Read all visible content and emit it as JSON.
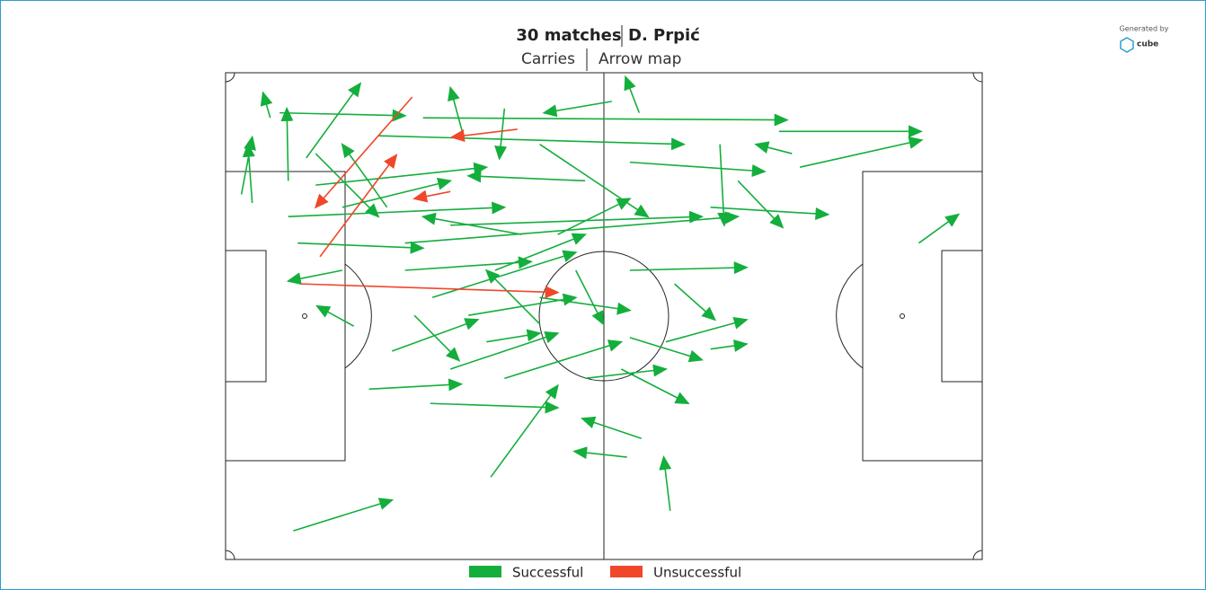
{
  "chart_data": {
    "type": "arrow",
    "title": "30 matches",
    "player": "D. Prpić",
    "subtitle": "Carries",
    "view": "Arrow map",
    "credit": "Generated by",
    "brand": "cube",
    "xlim": [
      0,
      105
    ],
    "ylim": [
      0,
      68
    ],
    "legend": "bottom",
    "series": [
      {
        "name": "Successful",
        "color": "#14ae3c",
        "start_x": [
          76.8,
          79.7,
          96.2,
          9.4,
          36.8,
          61.7,
          55.7,
          57.7,
          28.4,
          19.9,
          17.8,
          57.4,
          53.6,
          33.0,
          11.2,
          6.2,
          2.2,
          3.7,
          8.7,
          27.4,
          7.5,
          38.7,
          68.6,
          71.1,
          67.3,
          56.1,
          62.3,
          56.1,
          54.9,
          67.3,
          61.1,
          49.9,
          43.6,
          26.2,
          23.1,
          8.7,
          10.0,
          16.2,
          12.5,
          21.2,
          31.2,
          24.9,
          37.4,
          28.7,
          36.2,
          43.6,
          49.9,
          56.1,
          46.1,
          16.2,
          22.4,
          33.7,
          31.2,
          48.6,
          38.7,
          43.6,
          41.1,
          24.9,
          12.5,
          78.6
        ],
        "start_y": [
          8.2,
          13.2,
          23.8,
          64.0,
          56.5,
          61.2,
          53.7,
          51.1,
          46.2,
          44.2,
          35.4,
          5.6,
          4.0,
          8.8,
          11.9,
          6.3,
          17.0,
          18.2,
          15.1,
          6.3,
          5.6,
          5.0,
          10.0,
          15.1,
          18.8,
          27.6,
          29.5,
          37.0,
          41.4,
          38.6,
          37.6,
          42.7,
          31.4,
          33.9,
          38.9,
          20.1,
          23.8,
          27.6,
          15.7,
          8.8,
          21.3,
          23.8,
          27.6,
          31.4,
          37.6,
          35.1,
          15.1,
          12.5,
          22.6,
          18.8,
          18.8,
          33.9,
          41.4,
          27.6,
          42.7,
          10.0,
          22.6,
          27.6,
          11.3,
          11.3
        ],
        "end_x": [
          96.5,
          96.6,
          101.7,
          23.1,
          46.1,
          60.8,
          48.4,
          49.5,
          46.1,
          32.7,
          12.7,
          55.5,
          44.2,
          31.2,
          18.7,
          5.2,
          3.7,
          3.1,
          8.5,
          77.9,
          24.9,
          38.0,
          69.2,
          77.3,
          83.6,
          72.3,
          67.9,
          66.1,
          64.2,
          72.3,
          72.3,
          61.1,
          56.1,
          32.4,
          35.0,
          38.7,
          27.4,
          8.7,
          36.2,
          63.6,
          66.1,
          71.1,
          49.9,
          48.6,
          43.6,
          36.2,
          33.7,
          74.8,
          56.1,
          31.2,
          16.2,
          48.6,
          46.1,
          52.4,
          54.9,
          58.6,
          27.4,
          42.4,
          21.2,
          73.6
        ],
        "end_y": [
          8.2,
          9.4,
          19.8,
          59.7,
          43.7,
          53.7,
          52.9,
          48.3,
          46.8,
          43.5,
          32.6,
          0.6,
          5.6,
          2.1,
          1.5,
          2.8,
          9.0,
          10.0,
          5.0,
          6.6,
          6.0,
          12.0,
          21.3,
          21.6,
          19.8,
          27.2,
          34.5,
          40.1,
          46.2,
          37.9,
          34.5,
          41.4,
          33.2,
          40.2,
          34.5,
          18.8,
          24.5,
          29.1,
          13.2,
          10.0,
          20.1,
          20.1,
          22.6,
          25.1,
          36.4,
          27.6,
          14.4,
          13.8,
          17.6,
          15.1,
          10.0,
          31.4,
          36.4,
          35.1,
          37.6,
          20.1,
          20.1,
          26.4,
          20.1,
          10.0
        ]
      },
      {
        "name": "Unsuccessful",
        "color": "#f0472b",
        "start_x": [
          25.9,
          40.5,
          10.5,
          31.2,
          13.1
        ],
        "start_y": [
          3.4,
          7.9,
          29.5,
          16.6,
          25.7
        ],
        "end_x": [
          12.5,
          31.4,
          46.1,
          26.2,
          23.7
        ],
        "end_y": [
          18.8,
          9.0,
          30.7,
          17.6,
          11.5
        ]
      }
    ]
  }
}
